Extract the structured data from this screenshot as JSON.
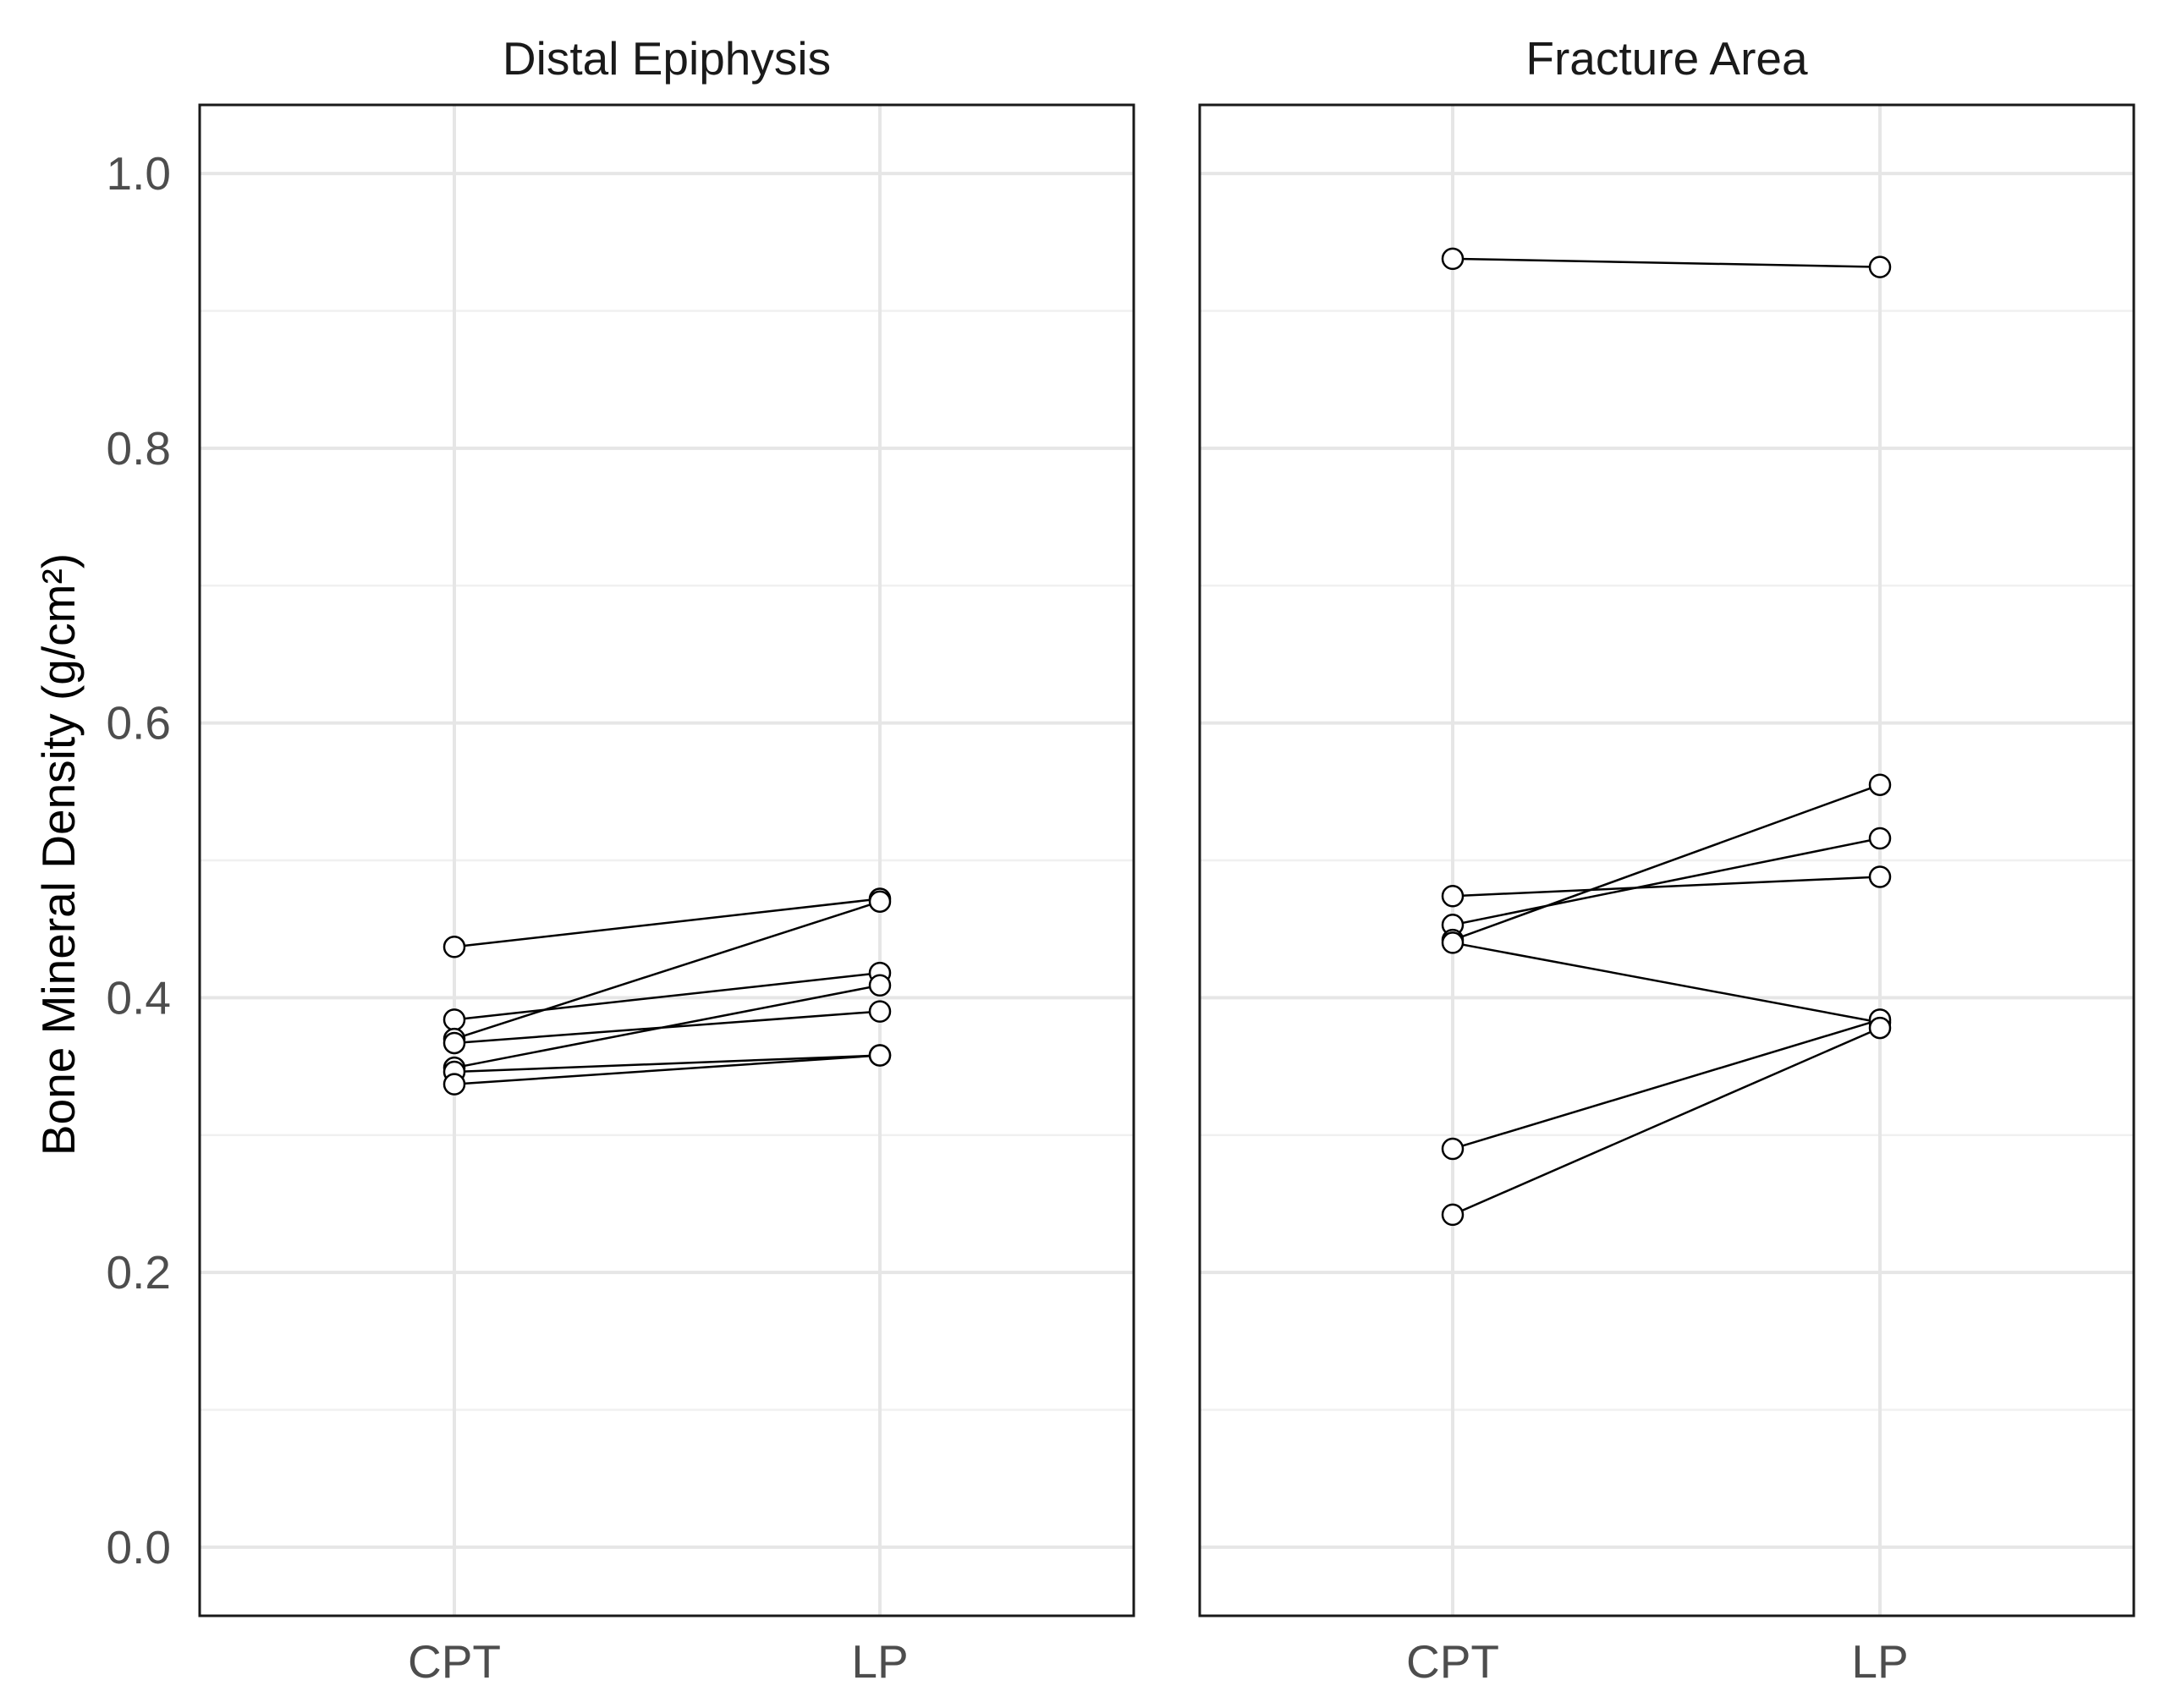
{
  "chart_data": [
    {
      "type": "line",
      "panel": "left",
      "title": "Distal Epiphysis",
      "xlabel": "",
      "ylabel": "Bone Mineral Density (g/cm²)",
      "categories": [
        "CPT",
        "LP"
      ],
      "ylim": [
        -0.05,
        1.05
      ],
      "yticks": [
        "0.0",
        "0.2",
        "0.4",
        "0.6",
        "0.8",
        "1.0"
      ],
      "grid": true,
      "legend": "none",
      "pairs": [
        {
          "values": [
            0.437,
            0.472
          ]
        },
        {
          "values": [
            0.384,
            0.418
          ]
        },
        {
          "values": [
            0.37,
            0.47
          ]
        },
        {
          "values": [
            0.367,
            0.39
          ]
        },
        {
          "values": [
            0.349,
            0.409
          ]
        },
        {
          "values": [
            0.346,
            0.358
          ]
        },
        {
          "values": [
            0.337,
            0.358
          ]
        }
      ]
    },
    {
      "type": "line",
      "panel": "right",
      "title": "Fracture Area",
      "xlabel": "",
      "ylabel": "",
      "categories": [
        "CPT",
        "LP"
      ],
      "ylim": [
        -0.05,
        1.05
      ],
      "grid": true,
      "legend": "none",
      "pairs": [
        {
          "values": [
            0.938,
            0.932
          ]
        },
        {
          "values": [
            0.474,
            0.488
          ]
        },
        {
          "values": [
            0.453,
            0.516
          ]
        },
        {
          "values": [
            0.442,
            0.555
          ]
        },
        {
          "values": [
            0.44,
            0.382
          ]
        },
        {
          "values": [
            0.29,
            0.384
          ]
        },
        {
          "values": [
            0.242,
            0.378
          ]
        }
      ]
    }
  ]
}
